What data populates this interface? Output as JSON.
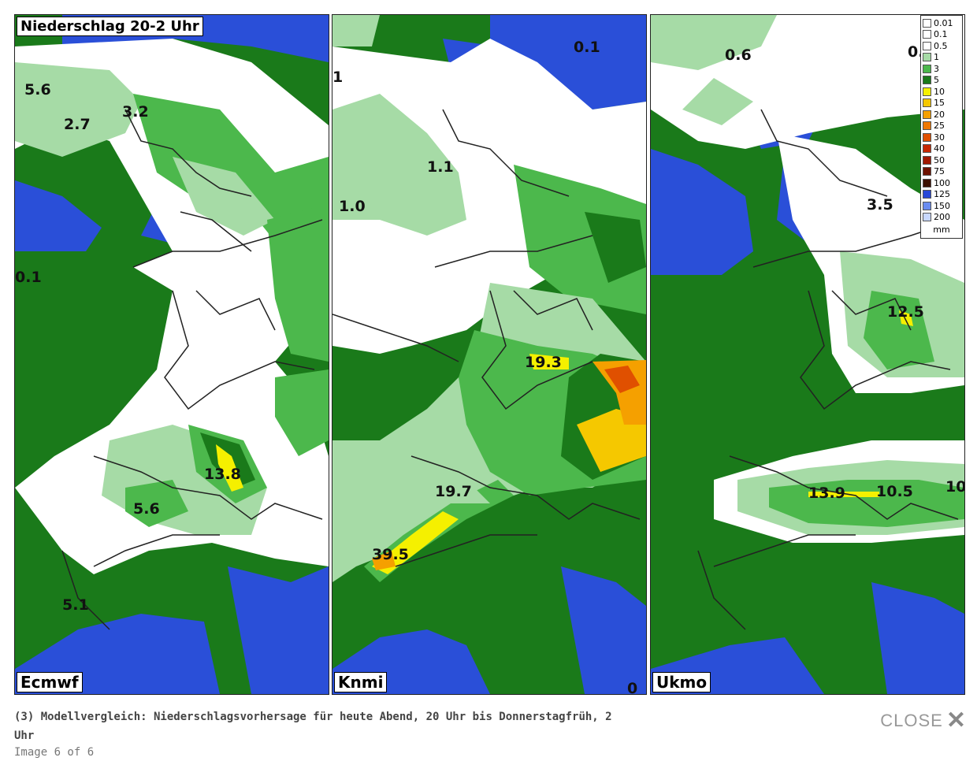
{
  "map": {
    "title": "Niederschlag 20-2 Uhr",
    "panels": [
      {
        "model": "Ecmwf",
        "values": [
          "5.6",
          "2.7",
          "3.2",
          "0.1",
          "13.8",
          "5.6",
          "5.1"
        ]
      },
      {
        "model": "Knmi",
        "values": [
          "0.1",
          "1.1",
          "1.0",
          "19.3",
          "19.7",
          "39.5",
          "1",
          "0"
        ]
      },
      {
        "model": "Ukmo",
        "values": [
          "0.6",
          "0.",
          "3.5",
          "12.5",
          "13.9",
          "10.5",
          "10"
        ]
      }
    ],
    "legend": {
      "unit": "mm",
      "items": [
        {
          "label": "0.01",
          "color": "#ffffff"
        },
        {
          "label": "0.1",
          "color": "#ffffff"
        },
        {
          "label": "0.5",
          "color": "#ffffff"
        },
        {
          "label": "1",
          "color": "#a6dba6"
        },
        {
          "label": "3",
          "color": "#4cb84c"
        },
        {
          "label": "5",
          "color": "#1a7a1a"
        },
        {
          "label": "10",
          "color": "#f5f000"
        },
        {
          "label": "15",
          "color": "#f5c800"
        },
        {
          "label": "20",
          "color": "#f5a000"
        },
        {
          "label": "25",
          "color": "#f07800"
        },
        {
          "label": "30",
          "color": "#e05000"
        },
        {
          "label": "40",
          "color": "#c82800"
        },
        {
          "label": "50",
          "color": "#a01800"
        },
        {
          "label": "75",
          "color": "#6e1200"
        },
        {
          "label": "100",
          "color": "#3c1000"
        },
        {
          "label": "125",
          "color": "#2848d8"
        },
        {
          "label": "150",
          "color": "#6a8cf0"
        },
        {
          "label": "200",
          "color": "#c8d8ff"
        }
      ]
    }
  },
  "caption": {
    "text": "(3) Modellvergleich: Niederschlagsvorhersage für heute Abend, 20 Uhr bis Donnerstagfrüh, 2 Uhr",
    "counter": "Image 6 of 6"
  },
  "close": {
    "label": "CLOSE",
    "icon": "close-x-icon"
  }
}
